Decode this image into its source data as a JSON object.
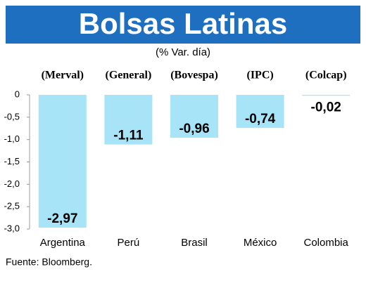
{
  "chart_data": {
    "type": "bar",
    "title": "Bolsas Latinas",
    "subtitle": "(% Var. día)",
    "categories": [
      "Argentina",
      "Perú",
      "Brasil",
      "México",
      "Colombia"
    ],
    "indices": [
      "(Merval)",
      "(General)",
      "(Bovespa)",
      "(IPC)",
      "(Colcap)"
    ],
    "values": [
      -2.97,
      -1.11,
      -0.96,
      -0.74,
      -0.02
    ],
    "value_labels": [
      "-2,97",
      "-1,11",
      "-0,96",
      "-0,74",
      "-0,02"
    ],
    "color": "#a8e4f7",
    "ylim": [
      -3,
      0
    ],
    "yticks": [
      0,
      {
        "value": -0.5,
        "label": "-0,5"
      },
      {
        "value": -1,
        "label": "-1,0"
      },
      {
        "value": -1.5,
        "label": "-1,5"
      },
      {
        "value": -2,
        "label": "-2,0"
      },
      {
        "value": -2.5,
        "label": "-2,5"
      },
      {
        "value": -3,
        "label": "-3,0"
      }
    ],
    "grid": false,
    "source": "Fuente: Bloomberg."
  }
}
